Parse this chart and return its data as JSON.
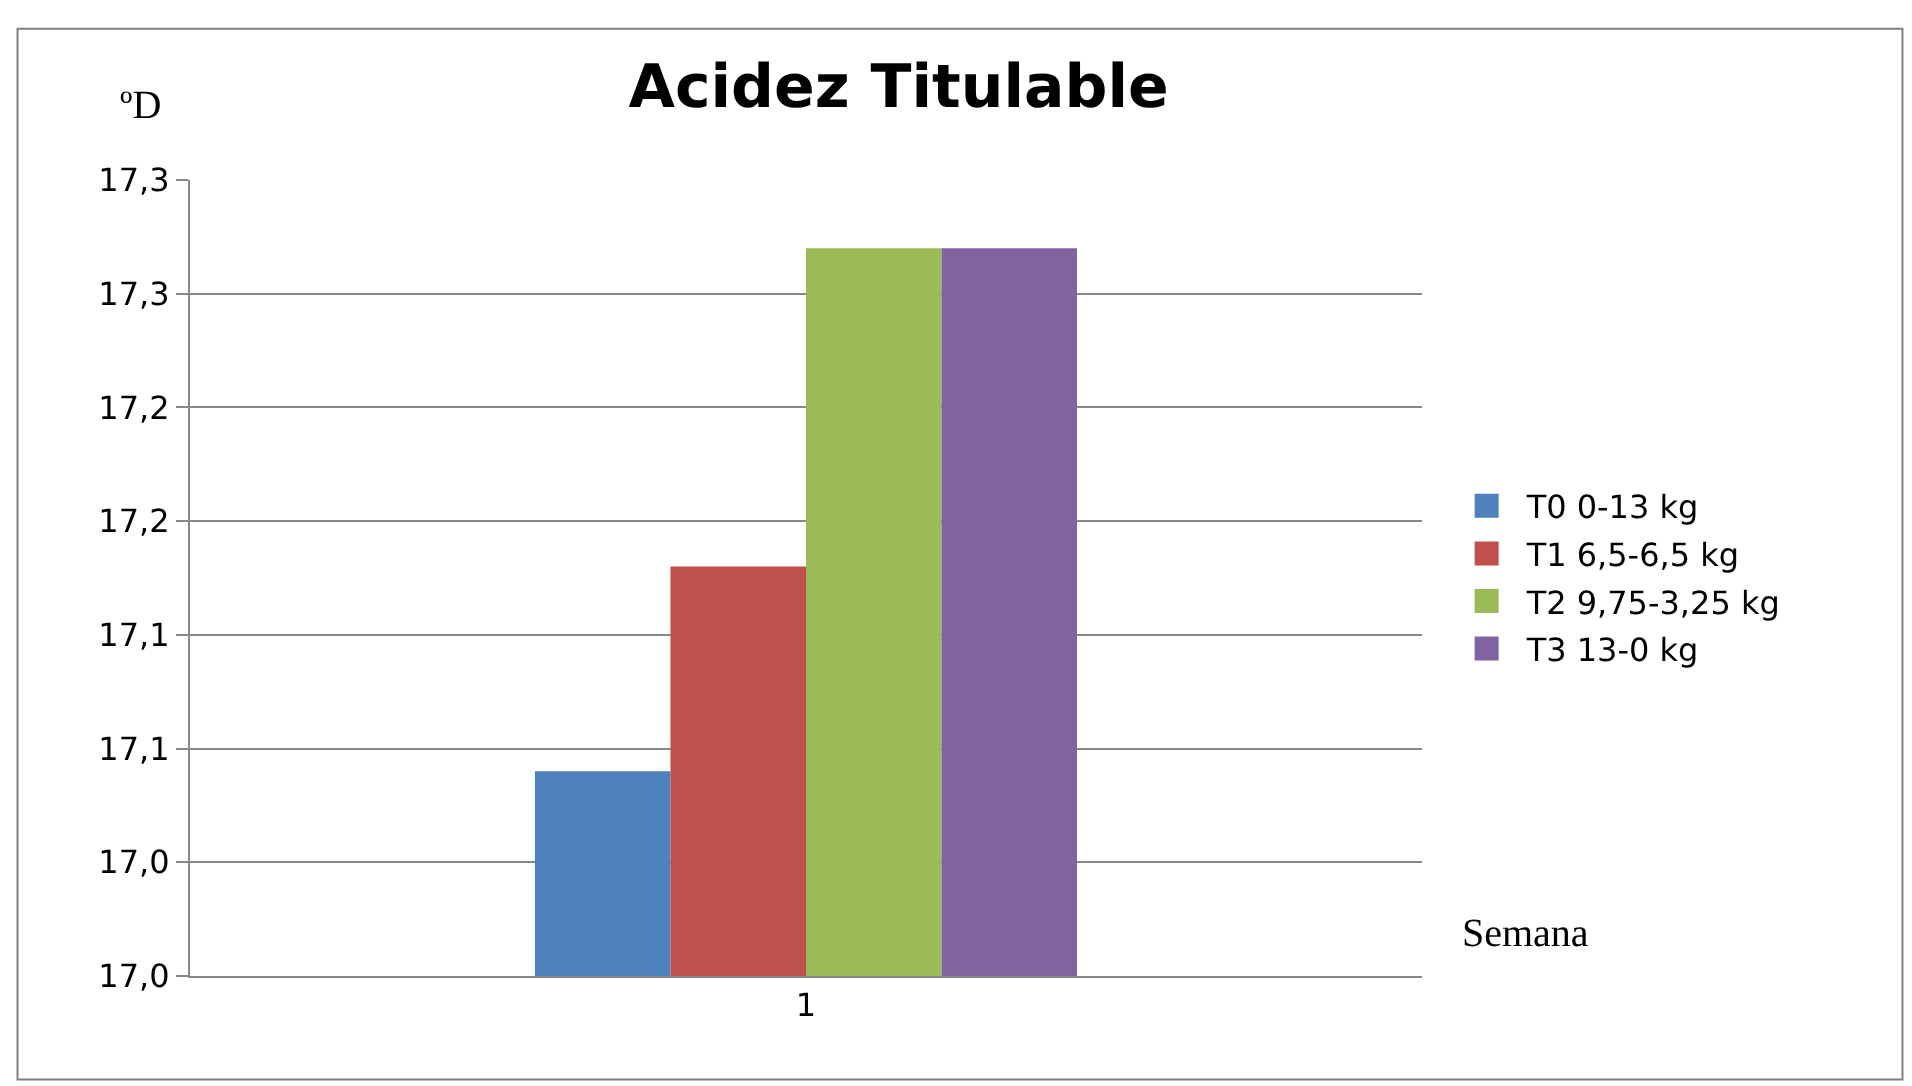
{
  "chart_data": {
    "type": "bar",
    "title": "Acidez Titulable",
    "ylabel": "ºD",
    "xlabel": "Semana",
    "categories": [
      "1"
    ],
    "series": [
      {
        "name": "T0 0-13 kg",
        "color": "#4f81bd",
        "values": [
          17.04
        ]
      },
      {
        "name": "T1 6,5-6,5 kg",
        "color": "#c0504d",
        "values": [
          17.13
        ]
      },
      {
        "name": "T2 9,75-3,25 kg",
        "color": "#9bbb59",
        "values": [
          17.27
        ]
      },
      {
        "name": "T3 13-0 kg",
        "color": "#8064a2",
        "values": [
          17.27
        ]
      }
    ],
    "ylim": [
      16.95,
      17.3
    ],
    "yticks": [
      {
        "value": 16.95,
        "label": "17,0"
      },
      {
        "value": 17.0,
        "label": "17,0"
      },
      {
        "value": 17.05,
        "label": "17,1"
      },
      {
        "value": 17.1,
        "label": "17,1"
      },
      {
        "value": 17.15,
        "label": "17,2"
      },
      {
        "value": 17.2,
        "label": "17,2"
      },
      {
        "value": 17.25,
        "label": "17,3"
      },
      {
        "value": 17.3,
        "label": "17,3"
      }
    ],
    "grid": "y",
    "legend": "right"
  }
}
